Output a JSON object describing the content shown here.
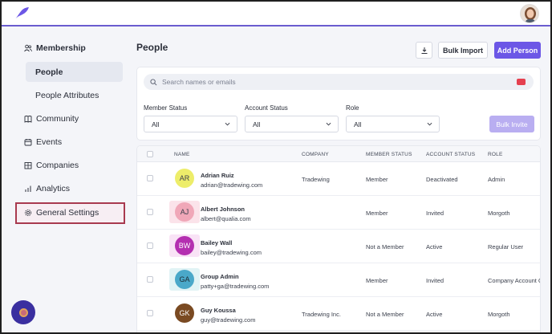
{
  "sidebar": {
    "membership": "Membership",
    "people": "People",
    "people_attributes": "People Attributes",
    "community": "Community",
    "events": "Events",
    "companies": "Companies",
    "analytics": "Analytics",
    "general_settings": "General Settings"
  },
  "header": {
    "title": "People",
    "bulk_import": "Bulk Import",
    "add_person": "Add Person"
  },
  "filters": {
    "search_placeholder": "Search names or emails",
    "member_status_label": "Member Status",
    "member_status_value": "All",
    "account_status_label": "Account Status",
    "account_status_value": "All",
    "role_label": "Role",
    "role_value": "All",
    "bulk_invite": "Bulk Invite"
  },
  "table": {
    "columns": [
      "NAME",
      "COMPANY",
      "MEMBER STATUS",
      "ACCOUNT STATUS",
      "ROLE"
    ],
    "rows": [
      {
        "initials": "AR",
        "name": "Adrian Ruiz",
        "email": "adrian@tradewing.com",
        "company": "Tradewing",
        "member_status": "Member",
        "account_status": "Deactivated",
        "role": "Admin",
        "bg": "#eded6a",
        "fg": "#3a3f4c",
        "hl": ""
      },
      {
        "initials": "AJ",
        "name": "Albert Johnson",
        "email": "albert@qualia.com",
        "company": "",
        "member_status": "Member",
        "account_status": "Invited",
        "role": "Morgoth",
        "bg": "#f0a7b8",
        "fg": "#3a3f4c",
        "hl": "#fbe3ea"
      },
      {
        "initials": "BW",
        "name": "Bailey Wall",
        "email": "bailey@tradewing.com",
        "company": "",
        "member_status": "Not a Member",
        "account_status": "Active",
        "role": "Regular User",
        "bg": "#b42fb0",
        "fg": "#ffffff",
        "hl": "#f9e3f6"
      },
      {
        "initials": "GA",
        "name": "Group Admin",
        "email": "patty+ga@tradewing.com",
        "company": "",
        "member_status": "Member",
        "account_status": "Invited",
        "role": "Company Account Ow",
        "bg": "#4aa8c9",
        "fg": "#1d2a33",
        "hl": "#e1f3f5"
      },
      {
        "initials": "GK",
        "name": "Guy Koussa",
        "email": "guy@tradewing.com",
        "company": "Tradewing Inc.",
        "member_status": "Not a Member",
        "account_status": "Active",
        "role": "Morgoth",
        "bg": "#7a4a22",
        "fg": "#ffffff",
        "hl": ""
      }
    ]
  },
  "colors": {
    "accent": "#6c57e6",
    "highlight_border": "#a83a4f"
  }
}
